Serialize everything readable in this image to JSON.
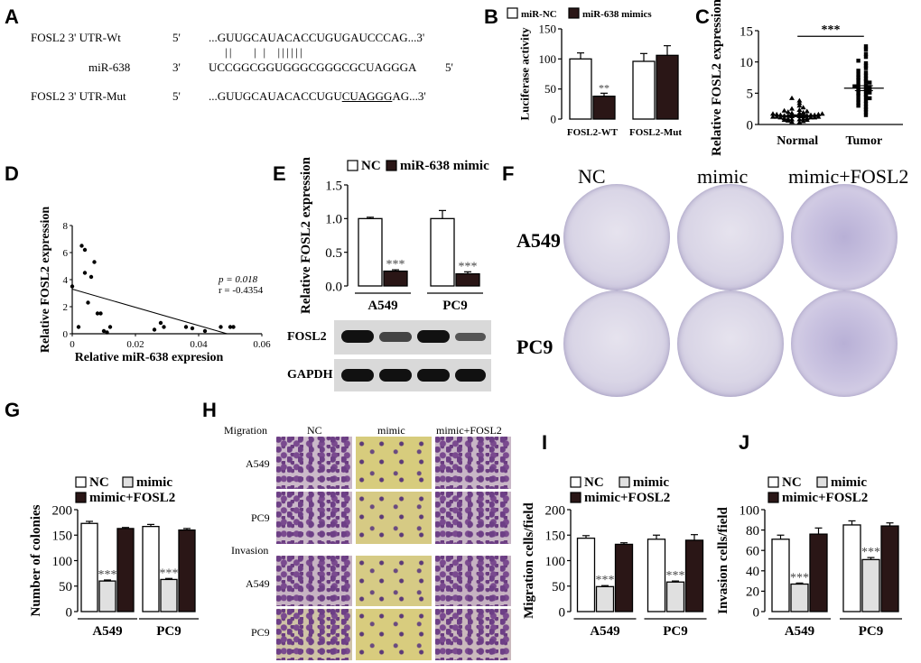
{
  "panels": {
    "A": {
      "label": "A",
      "rows": [
        {
          "name": "FOSL2 3' UTR-Wt",
          "end5": "5'",
          "seq": "...GUUGCAUACACCUGUGAUCCCAG...3'",
          "end3": ""
        },
        {
          "name": "miR-638",
          "end5": "3'",
          "seq": "UCCGGCGGUGGGCGGGCGCUAGGGA",
          "end3": "5'"
        },
        {
          "name": "FOSL2 3' UTR-Mut",
          "end5": "5'",
          "seq_pre": "...GUUGCAUACACCUGU",
          "seq_mut": "CUAGGG",
          "seq_post": "AG...3'",
          "end3": ""
        }
      ],
      "pairing": "||    | |  ||||||"
    },
    "B": {
      "label": "B"
    },
    "C": {
      "label": "C"
    },
    "D": {
      "label": "D",
      "stats": {
        "p": "p = 0.018",
        "r": "r = -0.4354"
      }
    },
    "E": {
      "label": "E",
      "blot_labels": [
        "FOSL2",
        "GAPDH"
      ]
    },
    "F": {
      "label": "F",
      "cols": [
        "NC",
        "mimic",
        "mimic+FOSL2"
      ],
      "rows": [
        "A549",
        "PC9"
      ]
    },
    "G": {
      "label": "G"
    },
    "H": {
      "label": "H",
      "cols": [
        "NC",
        "mimic",
        "mimic+FOSL2"
      ],
      "sections": [
        "Migration",
        "Invasion"
      ],
      "rows": [
        "A549",
        "PC9",
        "A549",
        "PC9"
      ]
    },
    "I": {
      "label": "I"
    },
    "J": {
      "label": "J"
    }
  },
  "chart_data": [
    {
      "id": "B",
      "type": "bar",
      "categories": [
        "FOSL2-WT",
        "FOSL2-Mut"
      ],
      "series": [
        {
          "name": "miR-NC",
          "values": [
            100,
            96
          ],
          "err": [
            10,
            13
          ],
          "color": "#ffffff"
        },
        {
          "name": "miR-638 mimics",
          "values": [
            38,
            106
          ],
          "err": [
            5,
            16
          ],
          "color": "#2a1616"
        }
      ],
      "ylabel": "Luciferase activity",
      "ylim": [
        0,
        150
      ],
      "yticks": [
        0,
        50,
        100,
        150
      ],
      "annotations": [
        {
          "text": "**",
          "category": 0,
          "series": 1
        }
      ]
    },
    {
      "id": "C",
      "type": "scatter",
      "categories": [
        "Normal",
        "Tumor"
      ],
      "series": [
        {
          "name": "Normal",
          "mean": 1.4,
          "sem": 0.15,
          "points": [
            0.3,
            0.4,
            0.5,
            0.6,
            0.7,
            0.7,
            0.8,
            0.8,
            0.9,
            0.9,
            1.0,
            1.0,
            1.1,
            1.1,
            1.1,
            1.2,
            1.2,
            1.2,
            1.3,
            1.3,
            1.3,
            1.4,
            1.4,
            1.4,
            1.5,
            1.5,
            1.5,
            1.6,
            1.6,
            1.7,
            1.7,
            1.8,
            1.8,
            1.9,
            2.0,
            2.1,
            2.2,
            2.3,
            2.5,
            2.7,
            3.0,
            3.4,
            3.8,
            4.2
          ]
        },
        {
          "name": "Tumor",
          "mean": 5.8,
          "sem": 0.4,
          "points": [
            1.5,
            2.0,
            2.4,
            2.8,
            3.0,
            3.3,
            3.5,
            3.8,
            4.0,
            4.2,
            4.4,
            4.6,
            4.8,
            5.0,
            5.1,
            5.3,
            5.5,
            5.6,
            5.8,
            5.9,
            6.0,
            6.1,
            6.3,
            6.5,
            6.7,
            6.9,
            7.1,
            7.3,
            7.5,
            7.8,
            8.0,
            8.3,
            8.6,
            9.0,
            9.4,
            9.8,
            10.2,
            10.8,
            11.3,
            12.0,
            12.5
          ]
        }
      ],
      "ylabel": "Relative FOSL2 expression",
      "ylim": [
        0,
        15
      ],
      "yticks": [
        0,
        5,
        10,
        15
      ],
      "annotations": [
        {
          "text": "***"
        }
      ]
    },
    {
      "id": "D",
      "type": "scatter",
      "x": [
        0.0,
        0.002,
        0.003,
        0.004,
        0.004,
        0.005,
        0.006,
        0.007,
        0.008,
        0.009,
        0.01,
        0.011,
        0.012,
        0.026,
        0.028,
        0.029,
        0.036,
        0.038,
        0.042,
        0.047,
        0.05,
        0.051
      ],
      "y": [
        3.5,
        0.5,
        6.5,
        6.2,
        4.5,
        2.3,
        4.2,
        5.3,
        1.5,
        1.5,
        0.2,
        0.1,
        0.5,
        0.3,
        0.8,
        0.5,
        0.5,
        0.4,
        0.2,
        0.5,
        0.5,
        0.5
      ],
      "trendline": {
        "x0": 0.0,
        "y0": 3.3,
        "x1": 0.049,
        "y1": 0.0
      },
      "xlabel": "Relative miR-638 expresion",
      "ylabel": "Relative FOSL2 expression",
      "xlim": [
        0,
        0.06
      ],
      "ylim": [
        0,
        8
      ],
      "xticks": [
        0,
        0.02,
        0.04,
        0.06
      ],
      "yticks": [
        0,
        2,
        4,
        6,
        8
      ]
    },
    {
      "id": "E",
      "type": "bar",
      "categories": [
        "A549",
        "PC9"
      ],
      "series": [
        {
          "name": "NC",
          "values": [
            1.0,
            1.0
          ],
          "err": [
            0.02,
            0.12
          ],
          "color": "#ffffff"
        },
        {
          "name": "miR-638 mimic",
          "values": [
            0.22,
            0.18
          ],
          "err": [
            0.02,
            0.03
          ],
          "color": "#2a1616"
        }
      ],
      "ylabel": "Relative FOSL2 expression",
      "ylim": [
        0,
        1.5
      ],
      "yticks": [
        0.0,
        0.5,
        1.0,
        1.5
      ],
      "annotations": [
        {
          "text": "***",
          "category": 0,
          "series": 1
        },
        {
          "text": "***",
          "category": 1,
          "series": 1
        }
      ]
    },
    {
      "id": "G",
      "type": "bar",
      "categories": [
        "A549",
        "PC9"
      ],
      "series": [
        {
          "name": "NC",
          "values": [
            173,
            167
          ],
          "err": [
            4,
            4
          ],
          "color": "#ffffff"
        },
        {
          "name": "mimic",
          "values": [
            60,
            63
          ],
          "err": [
            2,
            2
          ],
          "color": "#e0e0e0"
        },
        {
          "name": "mimic+FOSL2",
          "values": [
            163,
            160
          ],
          "err": [
            2,
            3
          ],
          "color": "#2a1616"
        }
      ],
      "ylabel": "Number of colonies",
      "ylim": [
        0,
        200
      ],
      "yticks": [
        0,
        50,
        100,
        150,
        200
      ],
      "annotations": [
        {
          "text": "***",
          "category": 0,
          "series": 1
        },
        {
          "text": "***",
          "category": 1,
          "series": 1
        }
      ]
    },
    {
      "id": "I",
      "type": "bar",
      "categories": [
        "A549",
        "PC9"
      ],
      "series": [
        {
          "name": "NC",
          "values": [
            144,
            142
          ],
          "err": [
            5,
            8
          ],
          "color": "#ffffff"
        },
        {
          "name": "mimic",
          "values": [
            49,
            58
          ],
          "err": [
            2,
            2
          ],
          "color": "#e0e0e0"
        },
        {
          "name": "mimic+FOSL2",
          "values": [
            132,
            140
          ],
          "err": [
            3,
            11
          ],
          "color": "#2a1616"
        }
      ],
      "ylabel": "Migration cells/field",
      "ylim": [
        0,
        200
      ],
      "yticks": [
        0,
        50,
        100,
        150,
        200
      ],
      "annotations": [
        {
          "text": "***",
          "category": 0,
          "series": 1
        },
        {
          "text": "***",
          "category": 1,
          "series": 1
        }
      ]
    },
    {
      "id": "J",
      "type": "bar",
      "categories": [
        "A549",
        "PC9"
      ],
      "series": [
        {
          "name": "NC",
          "values": [
            71,
            85
          ],
          "err": [
            4,
            4
          ],
          "color": "#ffffff"
        },
        {
          "name": "mimic",
          "values": [
            27,
            51
          ],
          "err": [
            1,
            2
          ],
          "color": "#e0e0e0"
        },
        {
          "name": "mimic+FOSL2",
          "values": [
            76,
            84
          ],
          "err": [
            6,
            3
          ],
          "color": "#2a1616"
        }
      ],
      "ylabel": "Invasion cells/field",
      "ylim": [
        0,
        100
      ],
      "yticks": [
        0,
        20,
        40,
        60,
        80,
        100
      ],
      "annotations": [
        {
          "text": "***",
          "category": 0,
          "series": 1
        },
        {
          "text": "***",
          "category": 1,
          "series": 1
        }
      ]
    }
  ]
}
